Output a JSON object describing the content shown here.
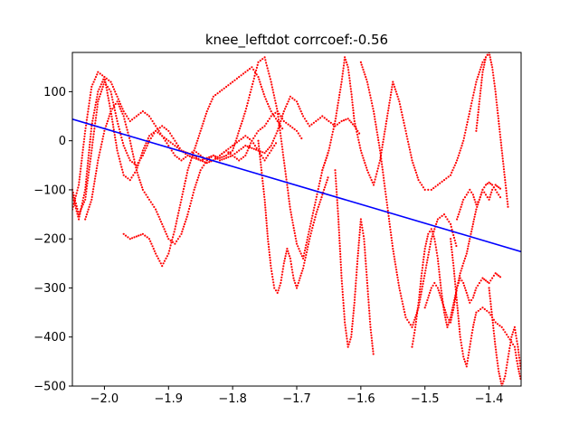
{
  "chart_data": {
    "type": "scatter",
    "title": "knee_leftdot corrcoef:-0.56",
    "xlabel": "",
    "ylabel": "",
    "xlim": [
      -2.05,
      -1.35
    ],
    "ylim": [
      -500,
      180
    ],
    "grid": false,
    "x_ticks": [
      -2.0,
      -1.9,
      -1.8,
      -1.7,
      -1.6,
      -1.5,
      -1.4
    ],
    "x_tick_labels": [
      "−2.0",
      "−1.9",
      "−1.8",
      "−1.7",
      "−1.6",
      "−1.5",
      "−1.4"
    ],
    "y_ticks": [
      100,
      0,
      -100,
      -200,
      -300,
      -400,
      -500
    ],
    "y_tick_labels": [
      "100",
      "0",
      "−100",
      "−200",
      "−300",
      "−400",
      "−500"
    ],
    "scatter_color": "#ff0000",
    "fit_line_color": "#0000ff",
    "fit_line": {
      "x": [
        -2.05,
        -1.35
      ],
      "y": [
        44,
        -226
      ]
    },
    "trajectories": [
      {
        "x": [
          -2.05,
          -2.04,
          -2.03,
          -2.02,
          -2.01,
          -2.0,
          -1.99,
          -1.98,
          -1.97,
          -1.96,
          -1.95,
          -1.94,
          -1.93,
          -1.92,
          -1.91,
          -1.9,
          -1.89,
          -1.88,
          -1.87,
          -1.86,
          -1.85,
          -1.84,
          -1.83,
          -1.82,
          -1.81,
          -1.8,
          -1.79,
          -1.78,
          -1.77,
          -1.76,
          -1.75,
          -1.74,
          -1.73
        ],
        "y": [
          -140,
          -90,
          20,
          110,
          140,
          130,
          60,
          -20,
          -70,
          -80,
          -60,
          -20,
          10,
          20,
          10,
          -10,
          -30,
          -40,
          -30,
          -20,
          -30,
          -40,
          -40,
          -30,
          -20,
          -10,
          0,
          10,
          0,
          -20,
          -40,
          -20,
          0
        ]
      },
      {
        "x": [
          -2.05,
          -2.04,
          -2.03,
          -2.02,
          -2.01,
          -2.0,
          -1.99,
          -1.98,
          -1.97,
          -1.96,
          -1.95,
          -1.94,
          -1.93,
          -1.92,
          -1.91,
          -1.9,
          -1.89,
          -1.88,
          -1.87,
          -1.86,
          -1.85,
          -1.84,
          -1.83,
          -1.82,
          -1.81,
          -1.8,
          -1.79,
          -1.78,
          -1.77,
          -1.76,
          -1.75,
          -1.74,
          -1.73,
          -1.72,
          -1.71,
          -1.7,
          -1.69,
          -1.68,
          -1.67,
          -1.66,
          -1.65,
          -1.64,
          -1.63,
          -1.62,
          -1.61,
          -1.6
        ],
        "y": [
          -100,
          -150,
          -120,
          -20,
          80,
          120,
          100,
          40,
          -10,
          -40,
          -50,
          -30,
          0,
          20,
          30,
          20,
          0,
          -20,
          -30,
          -35,
          -40,
          -35,
          -30,
          -40,
          -35,
          -30,
          -20,
          -10,
          -15,
          -20,
          -25,
          -10,
          20,
          60,
          90,
          80,
          50,
          30,
          40,
          50,
          40,
          30,
          40,
          45,
          30,
          10
        ]
      },
      {
        "x": [
          -2.05,
          -2.04,
          -2.03,
          -2.02,
          -2.01,
          -2.0,
          -1.99,
          -1.98,
          -1.97,
          -1.96,
          -1.95,
          -1.94,
          -1.93,
          -1.92,
          -1.91,
          -1.9,
          -1.89,
          -1.88,
          -1.87,
          -1.86,
          -1.85,
          -1.84,
          -1.83,
          -1.82,
          -1.81,
          -1.8,
          -1.79,
          -1.78,
          -1.77,
          -1.76,
          -1.75,
          -1.74,
          -1.73,
          -1.72,
          -1.71,
          -1.7,
          -1.69
        ],
        "y": [
          -110,
          -160,
          -100,
          30,
          100,
          130,
          120,
          90,
          60,
          40,
          50,
          60,
          50,
          30,
          10,
          0,
          -10,
          -20,
          -25,
          -30,
          -40,
          -45,
          -40,
          -30,
          -20,
          -30,
          -40,
          -30,
          0,
          20,
          30,
          50,
          60,
          40,
          30,
          20,
          0
        ]
      },
      {
        "x": [
          -2.03,
          -2.02,
          -2.01,
          -2.0,
          -1.99,
          -1.98,
          -1.97,
          -1.96,
          -1.95,
          -1.94,
          -1.93,
          -1.92,
          -1.91,
          -1.9,
          -1.89,
          -1.88,
          -1.87,
          -1.86,
          -1.85,
          -1.84,
          -1.83,
          -1.82,
          -1.81,
          -1.8
        ],
        "y": [
          -160,
          -120,
          -40,
          20,
          60,
          80,
          50,
          0,
          -60,
          -100,
          -120,
          -140,
          -170,
          -200,
          -210,
          -190,
          -150,
          -100,
          -60,
          -40,
          -30,
          -35,
          -30,
          -20
        ]
      },
      {
        "x": [
          -1.97,
          -1.96,
          -1.95,
          -1.94,
          -1.93,
          -1.92,
          -1.91,
          -1.9,
          -1.89,
          -1.88,
          -1.87,
          -1.86,
          -1.85,
          -1.84,
          -1.83,
          -1.82,
          -1.81,
          -1.8,
          -1.79,
          -1.78,
          -1.77,
          -1.76,
          -1.75,
          -1.74,
          -1.73,
          -1.72
        ],
        "y": [
          -190,
          -200,
          -195,
          -190,
          -200,
          -230,
          -255,
          -230,
          -180,
          -120,
          -60,
          -20,
          20,
          60,
          90,
          100,
          110,
          120,
          130,
          140,
          150,
          130,
          90,
          60,
          40,
          20
        ]
      },
      {
        "x": [
          -1.8,
          -1.79,
          -1.78,
          -1.77,
          -1.76,
          -1.75,
          -1.74,
          -1.73,
          -1.72,
          -1.71,
          -1.7,
          -1.69,
          -1.68,
          -1.67,
          -1.66,
          -1.65
        ],
        "y": [
          -20,
          20,
          60,
          110,
          160,
          170,
          120,
          60,
          -40,
          -140,
          -210,
          -240,
          -180,
          -120,
          -60,
          -20
        ]
      },
      {
        "x": [
          -1.76,
          -1.755,
          -1.75,
          -1.745,
          -1.74,
          -1.735,
          -1.73,
          -1.725,
          -1.72,
          -1.715,
          -1.71,
          -1.705,
          -1.7,
          -1.69,
          -1.68,
          -1.67,
          -1.66,
          -1.65
        ],
        "y": [
          0,
          -60,
          -120,
          -200,
          -260,
          -300,
          -310,
          -290,
          -250,
          -220,
          -240,
          -280,
          -300,
          -260,
          -200,
          -150,
          -110,
          -70
        ]
      },
      {
        "x": [
          -1.66,
          -1.65,
          -1.64,
          -1.63,
          -1.625,
          -1.62,
          -1.615,
          -1.61,
          -1.6,
          -1.59,
          -1.58,
          -1.57,
          -1.56,
          -1.55,
          -1.54,
          -1.53,
          -1.52,
          -1.51,
          -1.5,
          -1.49,
          -1.48,
          -1.47,
          -1.46,
          -1.45,
          -1.44,
          -1.43,
          -1.42,
          -1.41,
          -1.4
        ],
        "y": [
          -60,
          -20,
          40,
          120,
          170,
          150,
          100,
          40,
          -20,
          -60,
          -90,
          -40,
          40,
          120,
          80,
          20,
          -40,
          -80,
          -100,
          -100,
          -90,
          -80,
          -70,
          -40,
          0,
          60,
          120,
          160,
          180
        ]
      },
      {
        "x": [
          -1.64,
          -1.635,
          -1.63,
          -1.625,
          -1.62,
          -1.615,
          -1.61,
          -1.605,
          -1.6,
          -1.595,
          -1.59,
          -1.585,
          -1.58
        ],
        "y": [
          -60,
          -160,
          -280,
          -370,
          -420,
          -400,
          -330,
          -240,
          -160,
          -200,
          -290,
          -380,
          -440
        ]
      },
      {
        "x": [
          -1.6,
          -1.59,
          -1.58,
          -1.57,
          -1.56,
          -1.55,
          -1.54,
          -1.53,
          -1.52,
          -1.51,
          -1.5,
          -1.49,
          -1.48,
          -1.47,
          -1.46,
          -1.45
        ],
        "y": [
          160,
          120,
          60,
          -20,
          -120,
          -220,
          -300,
          -360,
          -380,
          -340,
          -270,
          -200,
          -160,
          -150,
          -170,
          -220
        ]
      },
      {
        "x": [
          -1.52,
          -1.515,
          -1.51,
          -1.505,
          -1.5,
          -1.495,
          -1.49,
          -1.485,
          -1.48,
          -1.475,
          -1.47,
          -1.465,
          -1.46,
          -1.455,
          -1.45,
          -1.445,
          -1.44,
          -1.435,
          -1.43,
          -1.425,
          -1.42,
          -1.415,
          -1.41,
          -1.405,
          -1.4,
          -1.395,
          -1.39,
          -1.385,
          -1.38
        ],
        "y": [
          -420,
          -380,
          -330,
          -270,
          -220,
          -190,
          -180,
          -200,
          -240,
          -300,
          -350,
          -380,
          -360,
          -330,
          -300,
          -270,
          -250,
          -230,
          -200,
          -170,
          -140,
          -120,
          -100,
          -110,
          -120,
          -100,
          -90,
          -95,
          -100
        ]
      },
      {
        "x": [
          -1.5,
          -1.495,
          -1.49,
          -1.485,
          -1.48,
          -1.475,
          -1.47,
          -1.465,
          -1.46,
          -1.455,
          -1.45,
          -1.445,
          -1.44,
          -1.435,
          -1.43,
          -1.425,
          -1.42,
          -1.415,
          -1.41,
          -1.405,
          -1.4,
          -1.395,
          -1.39,
          -1.385,
          -1.38
        ],
        "y": [
          -340,
          -320,
          -300,
          -290,
          -300,
          -320,
          -340,
          -360,
          -370,
          -340,
          -300,
          -280,
          -290,
          -310,
          -330,
          -320,
          -300,
          -290,
          -280,
          -285,
          -290,
          -280,
          -270,
          -275,
          -280
        ]
      },
      {
        "x": [
          -1.46,
          -1.455,
          -1.45,
          -1.445,
          -1.44,
          -1.435,
          -1.43,
          -1.425,
          -1.42,
          -1.41,
          -1.4,
          -1.39,
          -1.38,
          -1.37,
          -1.36,
          -1.355,
          -1.35
        ],
        "y": [
          -200,
          -260,
          -330,
          -400,
          -440,
          -460,
          -420,
          -380,
          -350,
          -340,
          -350,
          -370,
          -380,
          -400,
          -420,
          -460,
          -490
        ]
      },
      {
        "x": [
          -1.45,
          -1.445,
          -1.44,
          -1.435,
          -1.43,
          -1.425,
          -1.42,
          -1.415,
          -1.41,
          -1.405,
          -1.4,
          -1.395,
          -1.39,
          -1.385,
          -1.38
        ],
        "y": [
          -160,
          -140,
          -120,
          -110,
          -100,
          -110,
          -130,
          -120,
          -100,
          -90,
          -85,
          -90,
          -100,
          -110,
          -120
        ]
      },
      {
        "x": [
          -1.4,
          -1.395,
          -1.39,
          -1.385,
          -1.38,
          -1.375,
          -1.37,
          -1.365,
          -1.36,
          -1.355,
          -1.35
        ],
        "y": [
          -300,
          -360,
          -420,
          -470,
          -500,
          -480,
          -440,
          -400,
          -380,
          -420,
          -470
        ]
      },
      {
        "x": [
          -1.42,
          -1.415,
          -1.41,
          -1.405,
          -1.4,
          -1.395,
          -1.39,
          -1.385,
          -1.38,
          -1.375,
          -1.37
        ],
        "y": [
          20,
          80,
          140,
          170,
          180,
          150,
          100,
          40,
          -20,
          -80,
          -140
        ]
      }
    ]
  }
}
